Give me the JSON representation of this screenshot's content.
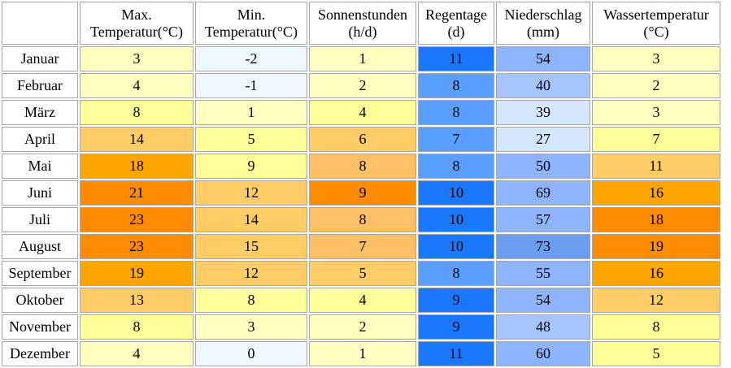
{
  "headers": [
    {
      "key": "max",
      "line1": "Max.",
      "line2": "Temperatur(°C)"
    },
    {
      "key": "min",
      "line1": "Min.",
      "line2": "Temperatur(°C)"
    },
    {
      "key": "sun",
      "line1": "Sonnenstunden",
      "line2": "(h/d)"
    },
    {
      "key": "rain",
      "line1": "Regentage",
      "line2": "(d)"
    },
    {
      "key": "precip",
      "line1": "Niederschlag",
      "line2": "(mm)"
    },
    {
      "key": "water",
      "line1": "Wassertemperatur",
      "line2": "(°C)"
    }
  ],
  "rows": [
    {
      "month": "Januar",
      "max": "3",
      "min": "-2",
      "sun": "1",
      "rain": "11",
      "precip": "54",
      "water": "3"
    },
    {
      "month": "Februar",
      "max": "4",
      "min": "-1",
      "sun": "2",
      "rain": "8",
      "precip": "40",
      "water": "2"
    },
    {
      "month": "März",
      "max": "8",
      "min": "1",
      "sun": "4",
      "rain": "8",
      "precip": "39",
      "water": "3"
    },
    {
      "month": "April",
      "max": "14",
      "min": "5",
      "sun": "6",
      "rain": "7",
      "precip": "27",
      "water": "7"
    },
    {
      "month": "Mai",
      "max": "18",
      "min": "9",
      "sun": "8",
      "rain": "8",
      "precip": "50",
      "water": "11"
    },
    {
      "month": "Juni",
      "max": "21",
      "min": "12",
      "sun": "9",
      "rain": "10",
      "precip": "69",
      "water": "16"
    },
    {
      "month": "Juli",
      "max": "23",
      "min": "14",
      "sun": "8",
      "rain": "10",
      "precip": "57",
      "water": "18"
    },
    {
      "month": "August",
      "max": "23",
      "min": "15",
      "sun": "7",
      "rain": "10",
      "precip": "73",
      "water": "19"
    },
    {
      "month": "September",
      "max": "19",
      "min": "12",
      "sun": "5",
      "rain": "8",
      "precip": "55",
      "water": "16"
    },
    {
      "month": "Oktober",
      "max": "13",
      "min": "8",
      "sun": "4",
      "rain": "9",
      "precip": "54",
      "water": "12"
    },
    {
      "month": "November",
      "max": "8",
      "min": "3",
      "sun": "2",
      "rain": "9",
      "precip": "48",
      "water": "8"
    },
    {
      "month": "Dezember",
      "max": "4",
      "min": "0",
      "sun": "1",
      "rain": "11",
      "precip": "60",
      "water": "5"
    }
  ],
  "colors": {
    "temp_cold": "#eef6ff",
    "temp_0_4": "#ffffc0",
    "temp_5_9": "#ffff99",
    "temp_10_14": "#ffcc66",
    "temp_15_19": "#ffa500",
    "temp_20_plus": "#ff8c00",
    "sun_1_2": "#ffffc0",
    "sun_3_4": "#ffff99",
    "sun_5_6": "#ffcc66",
    "sun_7_8": "#ffbf66",
    "sun_9_plus": "#ff8c00",
    "rain_7": "#5a9fff",
    "rain_8": "#5a9fff",
    "rain_9_plus": "#1a78ff",
    "precip_low": "#d5e6ff",
    "precip_mid": "#a6c4ff",
    "precip_high": "#8fb4ff",
    "precip_max": "#6b9cf0"
  }
}
